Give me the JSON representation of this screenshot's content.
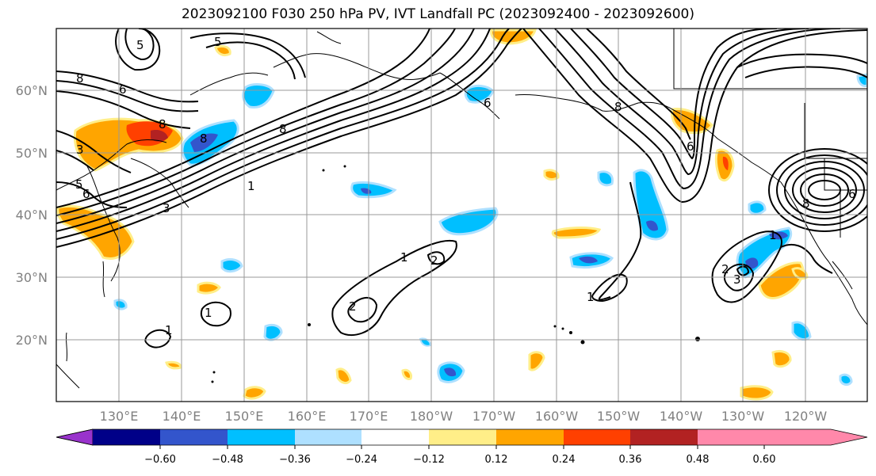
{
  "title": "2023092100 F030 250 hPa PV, IVT Landfall PC (2023092400 - 2023092600)",
  "lat_labels": [
    "60°N",
    "50°N",
    "40°N",
    "30°N",
    "20°N"
  ],
  "lon_labels": [
    "130°E",
    "140°E",
    "150°E",
    "160°E",
    "170°E",
    "180°W",
    "170°W",
    "160°W",
    "150°W",
    "140°W",
    "130°W",
    "120°W"
  ],
  "colorbar": {
    "colors": [
      "#9933cc",
      "#000088",
      "#3355cc",
      "#00bfff",
      "#aee0ff",
      "#ffffff",
      "#ffee88",
      "#ffa500",
      "#ff4000",
      "#b22222",
      "#ff88aa"
    ],
    "tick_labels": [
      "−0.60",
      "−0.48",
      "−0.36",
      "−0.24",
      "−0.12",
      "0.12",
      "0.24",
      "0.36",
      "0.48",
      "0.60"
    ]
  },
  "contour_labels": [
    "8",
    "6",
    "5",
    "3",
    "5",
    "6",
    "8",
    "8",
    "5",
    "3",
    "1",
    "1",
    "2",
    "2",
    "1",
    "1",
    "2",
    "3",
    "1",
    "6",
    "8",
    "6",
    "8",
    "6",
    "8",
    "1"
  ]
}
